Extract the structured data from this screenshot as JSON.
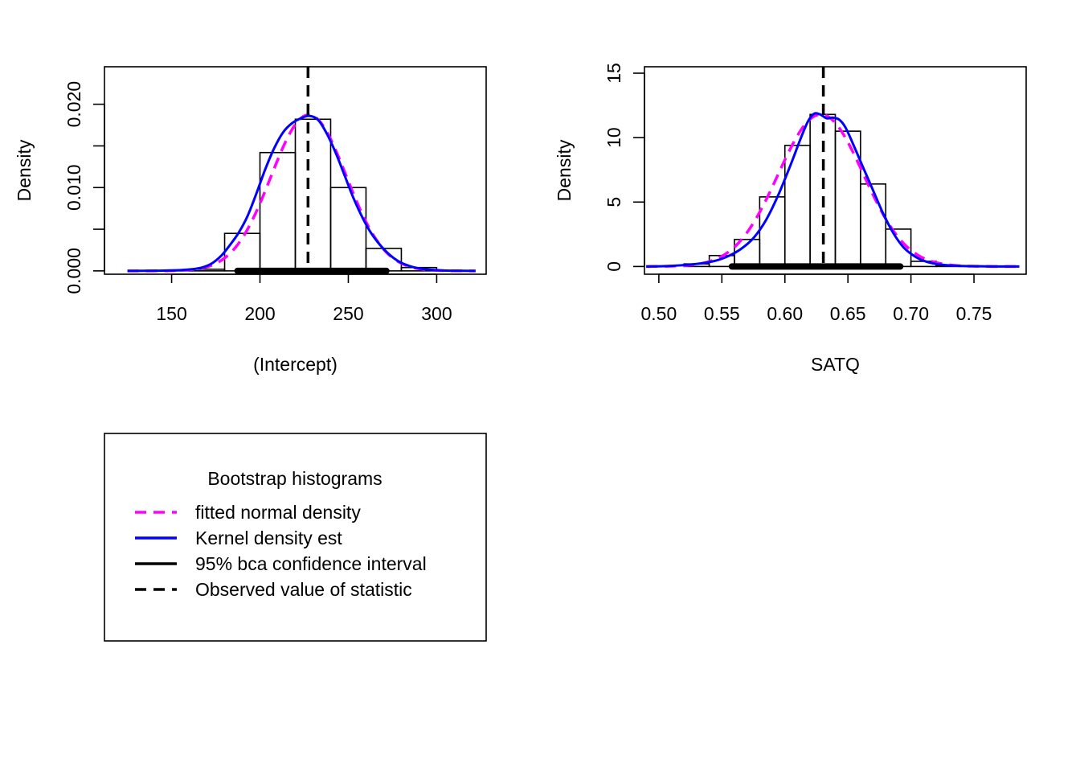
{
  "colors": {
    "normal": "#ff00ff",
    "kernel": "#0000ff",
    "ci": "#000000",
    "observed": "#000000",
    "bars": "#000000"
  },
  "chart_data": [
    {
      "type": "bar",
      "title": "",
      "xlabel": "(Intercept)",
      "ylabel": "Density",
      "xlim": [
        112,
        328
      ],
      "ylim": [
        -0.0004,
        0.0245
      ],
      "xticks": [
        150,
        200,
        250,
        300
      ],
      "xtick_labels": [
        "150",
        "200",
        "250",
        "300"
      ],
      "yticks": [
        0,
        0.005,
        0.01,
        0.015,
        0.02
      ],
      "ytick_labels": [
        "0.000",
        "",
        "0.010",
        "",
        "0.020"
      ],
      "bins": [
        {
          "x0": 140,
          "x1": 160,
          "density": 0.0
        },
        {
          "x0": 160,
          "x1": 180,
          "density": 0.0002
        },
        {
          "x0": 180,
          "x1": 200,
          "density": 0.0045
        },
        {
          "x0": 200,
          "x1": 220,
          "density": 0.0142
        },
        {
          "x0": 220,
          "x1": 240,
          "density": 0.0182
        },
        {
          "x0": 240,
          "x1": 260,
          "density": 0.01
        },
        {
          "x0": 260,
          "x1": 280,
          "density": 0.0027
        },
        {
          "x0": 280,
          "x1": 300,
          "density": 0.0004
        },
        {
          "x0": 300,
          "x1": 320,
          "density": 0.0
        }
      ],
      "observed": 227.2,
      "ci": [
        187.3,
        271.5
      ],
      "normal": {
        "mean": 227.6,
        "sd": 21.3
      },
      "kernel": {
        "x": [
          125,
          140,
          155,
          165,
          172,
          178,
          183,
          188,
          193,
          198,
          203,
          208,
          213,
          218,
          223,
          228,
          233,
          238,
          243,
          248,
          253,
          258,
          263,
          268,
          273,
          278,
          283,
          290,
          300,
          310,
          322
        ],
        "y": [
          0.0,
          2e-05,
          0.0001,
          0.0003,
          0.0008,
          0.0018,
          0.0031,
          0.0046,
          0.0066,
          0.0093,
          0.0122,
          0.0147,
          0.0166,
          0.0177,
          0.0183,
          0.0186,
          0.0181,
          0.0164,
          0.0141,
          0.0114,
          0.0087,
          0.0064,
          0.0045,
          0.0031,
          0.002,
          0.0012,
          0.0007,
          0.0003,
          8e-05,
          2e-05,
          0.0
        ]
      }
    },
    {
      "type": "bar",
      "title": "",
      "xlabel": "SATQ",
      "ylabel": "Density",
      "xlim": [
        0.4886,
        0.7914
      ],
      "ylim": [
        -0.6,
        15.5
      ],
      "xticks": [
        0.5,
        0.55,
        0.6,
        0.65,
        0.7,
        0.75
      ],
      "xtick_labels": [
        "0.50",
        "0.55",
        "0.60",
        "0.65",
        "0.70",
        "0.75"
      ],
      "yticks": [
        0,
        5,
        10,
        15
      ],
      "ytick_labels": [
        "0",
        "5",
        "10",
        "15"
      ],
      "bins": [
        {
          "x0": 0.52,
          "x1": 0.54,
          "density": 0.2
        },
        {
          "x0": 0.54,
          "x1": 0.56,
          "density": 0.85
        },
        {
          "x0": 0.56,
          "x1": 0.58,
          "density": 2.1
        },
        {
          "x0": 0.58,
          "x1": 0.6,
          "density": 5.4
        },
        {
          "x0": 0.6,
          "x1": 0.62,
          "density": 9.4
        },
        {
          "x0": 0.62,
          "x1": 0.64,
          "density": 11.8
        },
        {
          "x0": 0.64,
          "x1": 0.66,
          "density": 10.5
        },
        {
          "x0": 0.66,
          "x1": 0.68,
          "density": 6.4
        },
        {
          "x0": 0.68,
          "x1": 0.7,
          "density": 2.9
        },
        {
          "x0": 0.7,
          "x1": 0.72,
          "density": 0.4
        },
        {
          "x0": 0.72,
          "x1": 0.74,
          "density": 0.05
        }
      ],
      "observed": 0.6305,
      "ci": [
        0.558,
        0.6915
      ],
      "normal": {
        "mean": 0.6285,
        "sd": 0.0338
      },
      "kernel": {
        "x": [
          0.49,
          0.51,
          0.53,
          0.545,
          0.555,
          0.565,
          0.575,
          0.585,
          0.595,
          0.605,
          0.612,
          0.618,
          0.623,
          0.628,
          0.633,
          0.638,
          0.643,
          0.648,
          0.655,
          0.662,
          0.67,
          0.678,
          0.686,
          0.694,
          0.702,
          0.71,
          0.72,
          0.735,
          0.75,
          0.77,
          0.786
        ],
        "y": [
          0.0,
          0.05,
          0.2,
          0.45,
          0.8,
          1.35,
          2.2,
          3.6,
          5.6,
          8.0,
          9.8,
          11.2,
          11.85,
          11.8,
          11.5,
          11.55,
          11.4,
          10.8,
          9.3,
          7.7,
          5.9,
          4.1,
          2.6,
          1.5,
          0.85,
          0.45,
          0.2,
          0.06,
          0.02,
          0.0,
          0.0
        ]
      }
    }
  ],
  "legend": {
    "title": "Bootstrap histograms",
    "entries": [
      {
        "label": "fitted normal density",
        "style": "dashed",
        "color": "#ff00ff"
      },
      {
        "label": "Kernel density est",
        "style": "solid",
        "color": "#0000ff"
      },
      {
        "label": "95% bca confidence interval",
        "style": "solid",
        "color": "#000000"
      },
      {
        "label": "Observed value of statistic",
        "style": "dashed",
        "color": "#000000"
      }
    ]
  }
}
